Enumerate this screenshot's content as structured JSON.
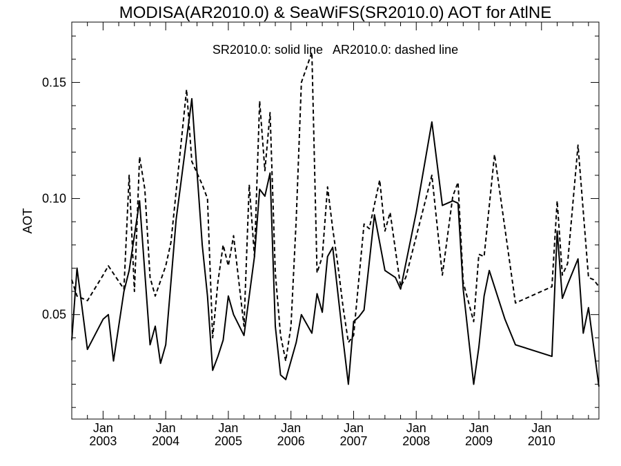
{
  "chart_data": {
    "type": "line",
    "title": "MODISA(AR2010.0) & SeaWiFS(SR2010.0)  AOT for AtlNE",
    "annotation": "SR2010.0: solid line   AR2010.0: dashed line",
    "xlabel": "",
    "ylabel": "AOT",
    "xlim": [
      "2002-07-01",
      "2010-12-01"
    ],
    "ylim": [
      0.005,
      0.176
    ],
    "yticks": [
      {
        "value": 0.05,
        "label": "0.05"
      },
      {
        "value": 0.1,
        "label": "0.10"
      },
      {
        "value": 0.15,
        "label": "0.15"
      }
    ],
    "yminor": [
      0.01,
      0.02,
      0.03,
      0.04,
      0.06,
      0.07,
      0.08,
      0.09,
      0.11,
      0.12,
      0.13,
      0.14,
      0.16,
      0.17
    ],
    "xticks": [
      {
        "date": "2003-01-01",
        "month": "Jan",
        "year": "2003"
      },
      {
        "date": "2004-01-01",
        "month": "Jan",
        "year": "2004"
      },
      {
        "date": "2005-01-01",
        "month": "Jan",
        "year": "2005"
      },
      {
        "date": "2006-01-01",
        "month": "Jan",
        "year": "2006"
      },
      {
        "date": "2007-01-01",
        "month": "Jan",
        "year": "2007"
      },
      {
        "date": "2008-01-01",
        "month": "Jan",
        "year": "2008"
      },
      {
        "date": "2009-01-01",
        "month": "Jan",
        "year": "2009"
      },
      {
        "date": "2010-01-01",
        "month": "Jan",
        "year": "2010"
      }
    ],
    "xminor_months": [
      4,
      7,
      10
    ],
    "grid": false,
    "series": [
      {
        "name": "SR2010.0",
        "style": "solid",
        "color": "#000000",
        "points": [
          [
            "2002-07-01",
            0.039
          ],
          [
            "2002-08-01",
            0.07
          ],
          [
            "2002-10-01",
            0.035
          ],
          [
            "2003-01-01",
            0.048
          ],
          [
            "2003-02-01",
            0.05
          ],
          [
            "2003-03-01",
            0.03
          ],
          [
            "2003-05-01",
            0.06
          ],
          [
            "2003-06-01",
            0.069
          ],
          [
            "2003-08-01",
            0.099
          ],
          [
            "2003-10-01",
            0.037
          ],
          [
            "2003-11-01",
            0.045
          ],
          [
            "2003-12-01",
            0.029
          ],
          [
            "2004-01-01",
            0.037
          ],
          [
            "2004-03-01",
            0.091
          ],
          [
            "2004-06-01",
            0.143
          ],
          [
            "2004-08-01",
            0.08
          ],
          [
            "2004-09-01",
            0.058
          ],
          [
            "2004-10-01",
            0.026
          ],
          [
            "2004-11-01",
            0.032
          ],
          [
            "2004-12-01",
            0.039
          ],
          [
            "2005-01-01",
            0.058
          ],
          [
            "2005-02-01",
            0.05
          ],
          [
            "2005-04-01",
            0.041
          ],
          [
            "2005-06-01",
            0.075
          ],
          [
            "2005-07-01",
            0.104
          ],
          [
            "2005-08-01",
            0.101
          ],
          [
            "2005-09-01",
            0.111
          ],
          [
            "2005-10-01",
            0.045
          ],
          [
            "2005-11-01",
            0.024
          ],
          [
            "2005-12-01",
            0.022
          ],
          [
            "2006-02-01",
            0.038
          ],
          [
            "2006-03-01",
            0.05
          ],
          [
            "2006-05-01",
            0.042
          ],
          [
            "2006-06-01",
            0.059
          ],
          [
            "2006-07-01",
            0.051
          ],
          [
            "2006-08-01",
            0.075
          ],
          [
            "2006-09-01",
            0.079
          ],
          [
            "2006-11-01",
            0.039
          ],
          [
            "2006-12-01",
            0.02
          ],
          [
            "2007-01-01",
            0.047
          ],
          [
            "2007-02-01",
            0.049
          ],
          [
            "2007-03-01",
            0.052
          ],
          [
            "2007-05-01",
            0.093
          ],
          [
            "2007-07-01",
            0.069
          ],
          [
            "2007-09-01",
            0.066
          ],
          [
            "2007-10-01",
            0.061
          ],
          [
            "2008-01-01",
            0.094
          ],
          [
            "2008-04-01",
            0.133
          ],
          [
            "2008-06-01",
            0.097
          ],
          [
            "2008-08-01",
            0.099
          ],
          [
            "2008-09-01",
            0.098
          ],
          [
            "2008-10-01",
            0.061
          ],
          [
            "2008-12-01",
            0.02
          ],
          [
            "2009-01-01",
            0.036
          ],
          [
            "2009-02-01",
            0.058
          ],
          [
            "2009-03-01",
            0.069
          ],
          [
            "2009-06-01",
            0.048
          ],
          [
            "2009-08-01",
            0.037
          ],
          [
            "2010-03-01",
            0.032
          ],
          [
            "2010-04-01",
            0.086
          ],
          [
            "2010-05-01",
            0.057
          ],
          [
            "2010-06-01",
            0.063
          ],
          [
            "2010-08-01",
            0.074
          ],
          [
            "2010-09-01",
            0.042
          ],
          [
            "2010-10-01",
            0.053
          ],
          [
            "2010-12-01",
            0.019
          ]
        ]
      },
      {
        "name": "AR2010.0",
        "style": "dashed",
        "color": "#000000",
        "points": [
          [
            "2002-07-01",
            0.065
          ],
          [
            "2002-08-01",
            0.058
          ],
          [
            "2002-10-01",
            0.056
          ],
          [
            "2003-01-01",
            0.067
          ],
          [
            "2003-02-01",
            0.071
          ],
          [
            "2003-05-01",
            0.061
          ],
          [
            "2003-06-01",
            0.11
          ],
          [
            "2003-07-01",
            0.06
          ],
          [
            "2003-08-01",
            0.118
          ],
          [
            "2003-09-01",
            0.104
          ],
          [
            "2003-10-01",
            0.066
          ],
          [
            "2003-11-01",
            0.058
          ],
          [
            "2004-01-01",
            0.071
          ],
          [
            "2004-02-01",
            0.081
          ],
          [
            "2004-05-01",
            0.147
          ],
          [
            "2004-06-01",
            0.116
          ],
          [
            "2004-08-01",
            0.106
          ],
          [
            "2004-09-01",
            0.1
          ],
          [
            "2004-10-01",
            0.04
          ],
          [
            "2004-11-01",
            0.064
          ],
          [
            "2004-12-01",
            0.08
          ],
          [
            "2005-01-01",
            0.071
          ],
          [
            "2005-02-01",
            0.084
          ],
          [
            "2005-04-01",
            0.045
          ],
          [
            "2005-05-01",
            0.106
          ],
          [
            "2005-06-01",
            0.075
          ],
          [
            "2005-07-01",
            0.142
          ],
          [
            "2005-08-01",
            0.112
          ],
          [
            "2005-09-01",
            0.137
          ],
          [
            "2005-10-01",
            0.068
          ],
          [
            "2005-11-01",
            0.041
          ],
          [
            "2005-12-01",
            0.03
          ],
          [
            "2006-01-01",
            0.045
          ],
          [
            "2006-02-01",
            0.091
          ],
          [
            "2006-03-01",
            0.15
          ],
          [
            "2006-05-01",
            0.163
          ],
          [
            "2006-06-01",
            0.068
          ],
          [
            "2006-07-01",
            0.075
          ],
          [
            "2006-08-01",
            0.105
          ],
          [
            "2006-09-01",
            0.087
          ],
          [
            "2006-10-01",
            0.071
          ],
          [
            "2006-11-01",
            0.053
          ],
          [
            "2006-12-01",
            0.038
          ],
          [
            "2007-01-01",
            0.041
          ],
          [
            "2007-02-01",
            0.065
          ],
          [
            "2007-03-01",
            0.089
          ],
          [
            "2007-04-01",
            0.087
          ],
          [
            "2007-06-01",
            0.108
          ],
          [
            "2007-07-01",
            0.086
          ],
          [
            "2007-08-01",
            0.094
          ],
          [
            "2007-10-01",
            0.062
          ],
          [
            "2007-11-01",
            0.066
          ],
          [
            "2008-04-01",
            0.11
          ],
          [
            "2008-06-01",
            0.067
          ],
          [
            "2008-08-01",
            0.101
          ],
          [
            "2008-09-01",
            0.107
          ],
          [
            "2008-10-01",
            0.064
          ],
          [
            "2008-12-01",
            0.047
          ],
          [
            "2009-01-01",
            0.076
          ],
          [
            "2009-02-01",
            0.075
          ],
          [
            "2009-04-01",
            0.119
          ],
          [
            "2009-08-01",
            0.055
          ],
          [
            "2010-03-01",
            0.062
          ],
          [
            "2010-04-01",
            0.099
          ],
          [
            "2010-05-01",
            0.067
          ],
          [
            "2010-06-01",
            0.072
          ],
          [
            "2010-08-01",
            0.123
          ],
          [
            "2010-10-01",
            0.066
          ],
          [
            "2010-11-01",
            0.065
          ],
          [
            "2010-12-01",
            0.062
          ]
        ]
      }
    ]
  }
}
